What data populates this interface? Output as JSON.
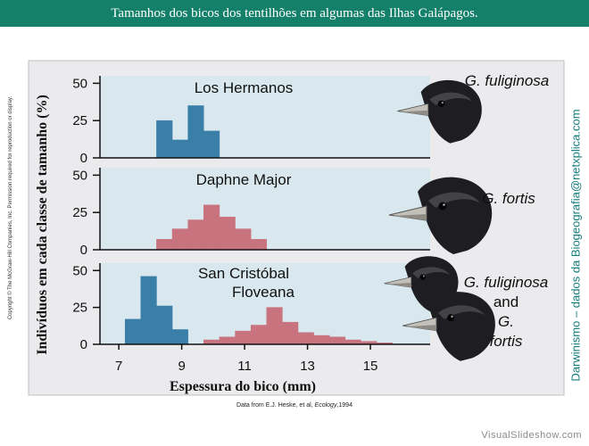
{
  "header": {
    "title": "Tamanhos dos bicos dos tentilhões em algumas das Ilhas Galápagos."
  },
  "credits": {
    "copyright": "Copyright © The McGraw-Hill Companies, Inc. Permission required for reproduction or display.",
    "side": "Darwinismo – dados da Biogeografia@netxplica.com",
    "watermark": "VisualSlideshow.com"
  },
  "colors": {
    "blue": "#3a7fa8",
    "red": "#c9737e",
    "panel": "#d8e8ee",
    "frame": "#ebebee"
  },
  "chart_data": {
    "type": "bar",
    "ylabel": "Indivíduos em cada classe de tamanho (%)",
    "xlabel": "Espessura do bico (mm)",
    "source_prefix": "Data from E.J. Heske, et al, ",
    "source_journal": "Ecology",
    "source_suffix": ",1994",
    "xlim": [
      6.4,
      16.9
    ],
    "x_ticks": [
      7,
      9,
      11,
      13,
      15
    ],
    "bin_width": 0.5,
    "panels": [
      {
        "island": "Los Hermanos",
        "ylim": [
          0,
          55
        ],
        "y_ticks": [
          0,
          25,
          50
        ],
        "species_label": [
          "G. fuliginosa"
        ],
        "series": [
          {
            "color": "blue",
            "bins_start": [
              8.2,
              8.7,
              9.2,
              9.7,
              10.2
            ],
            "values": [
              25,
              12,
              35,
              18,
              0
            ]
          }
        ]
      },
      {
        "island": "Daphne Major",
        "ylim": [
          0,
          55
        ],
        "y_ticks": [
          0,
          25,
          50
        ],
        "species_label": [
          "G. fortis"
        ],
        "series": [
          {
            "color": "red",
            "bins_start": [
              8.2,
              8.7,
              9.2,
              9.7,
              10.2,
              10.7,
              11.2
            ],
            "values": [
              7,
              14,
              20,
              30,
              22,
              14,
              7
            ]
          }
        ]
      },
      {
        "island": "San Cristóbal",
        "island2": "Floveana",
        "ylim": [
          0,
          55
        ],
        "y_ticks": [
          0,
          25,
          50
        ],
        "species_label": [
          "G. fuliginosa",
          "and",
          "G.",
          "fortis"
        ],
        "series": [
          {
            "color": "blue",
            "bins_start": [
              7.2,
              7.7,
              8.2,
              8.7
            ],
            "values": [
              17,
              46,
              26,
              10
            ]
          },
          {
            "color": "red",
            "bins_start": [
              9.7,
              10.2,
              10.7,
              11.2,
              11.7,
              12.2,
              12.7,
              13.2,
              13.7,
              14.2,
              14.7,
              15.2
            ],
            "values": [
              3,
              5,
              9,
              13,
              25,
              15,
              8,
              6,
              5,
              3,
              2,
              1
            ]
          }
        ]
      }
    ]
  }
}
